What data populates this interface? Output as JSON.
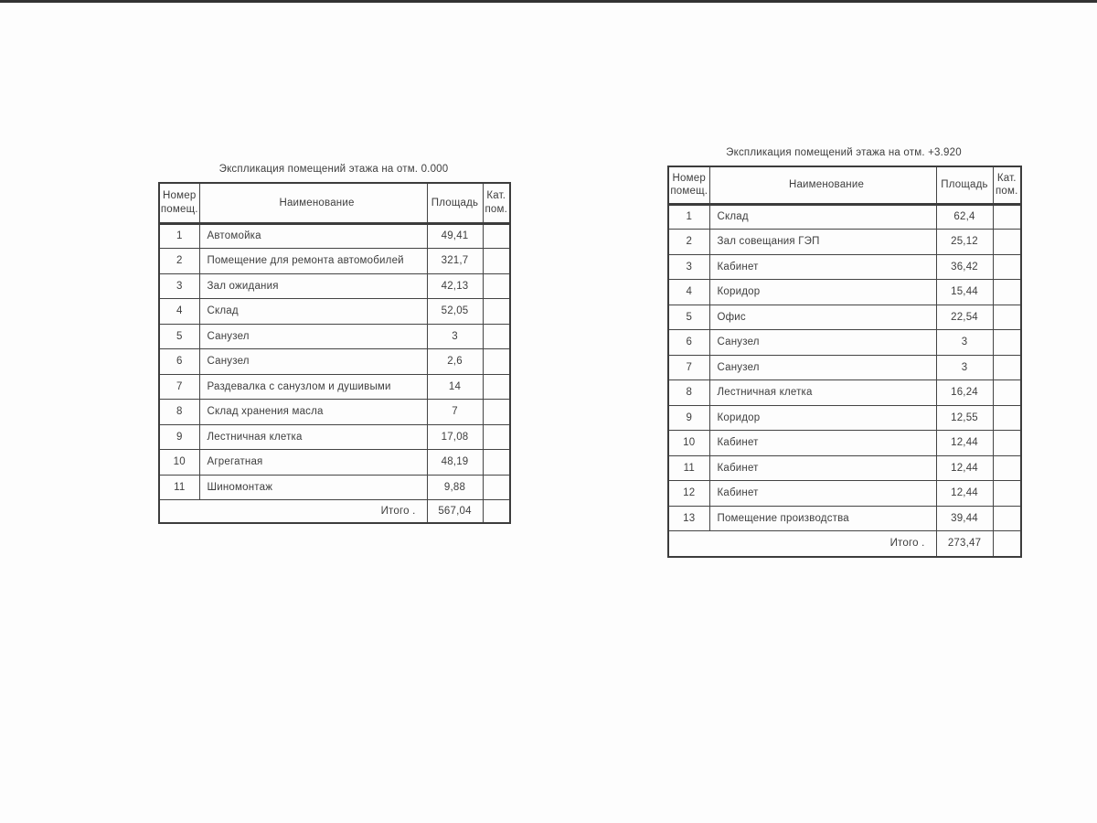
{
  "page": {
    "background": "#fdfdfd",
    "top_edge_color": "#333333",
    "border_color": "#3c3c3c",
    "text_color": "#3e3e3e"
  },
  "tables": [
    {
      "id": "floor-0.000",
      "title": "Экспликация помещений этажа на отм. 0.000",
      "header": {
        "number": [
          "Номер",
          "помещ."
        ],
        "name": "Наименование",
        "area": "Площадь",
        "category": [
          "Кат.",
          "пом."
        ]
      },
      "rows": [
        {
          "num": "1",
          "name": "Автомойка",
          "area": "49,41",
          "cat": ""
        },
        {
          "num": "2",
          "name": "Помещение для ремонта автомобилей",
          "area": "321,7",
          "cat": ""
        },
        {
          "num": "3",
          "name": "Зал ожидания",
          "area": "42,13",
          "cat": ""
        },
        {
          "num": "4",
          "name": "Склад",
          "area": "52,05",
          "cat": ""
        },
        {
          "num": "5",
          "name": "Санузел",
          "area": "3",
          "cat": ""
        },
        {
          "num": "6",
          "name": "Санузел",
          "area": "2,6",
          "cat": ""
        },
        {
          "num": "7",
          "name": "Раздевалка с санузлом и душивыми",
          "area": "14",
          "cat": ""
        },
        {
          "num": "8",
          "name": "Склад хранения масла",
          "area": "7",
          "cat": ""
        },
        {
          "num": "9",
          "name": "Лестничная клетка",
          "area": "17,08",
          "cat": ""
        },
        {
          "num": "10",
          "name": "Агрегатная",
          "area": "48,19",
          "cat": ""
        },
        {
          "num": "11",
          "name": "Шиномонтаж",
          "area": "9,88",
          "cat": ""
        }
      ],
      "total_label": "Итого .",
      "total_value": "567,04"
    },
    {
      "id": "floor-+3.920",
      "title": "Экспликация помещений этажа на отм. +3.920",
      "header": {
        "number": [
          "Номер",
          "помещ."
        ],
        "name": "Наименование",
        "area": "Площадь",
        "category": [
          "Кат.",
          "пом."
        ]
      },
      "rows": [
        {
          "num": "1",
          "name": "Склад",
          "area": "62,4",
          "cat": ""
        },
        {
          "num": "2",
          "name": "Зал совещания ГЭП",
          "area": "25,12",
          "cat": ""
        },
        {
          "num": "3",
          "name": "Кабинет",
          "area": "36,42",
          "cat": ""
        },
        {
          "num": "4",
          "name": "Коридор",
          "area": "15,44",
          "cat": ""
        },
        {
          "num": "5",
          "name": "Офис",
          "area": "22,54",
          "cat": ""
        },
        {
          "num": "6",
          "name": "Санузел",
          "area": "3",
          "cat": ""
        },
        {
          "num": "7",
          "name": "Санузел",
          "area": "3",
          "cat": ""
        },
        {
          "num": "8",
          "name": "Лестничная клетка",
          "area": "16,24",
          "cat": ""
        },
        {
          "num": "9",
          "name": "Коридор",
          "area": "12,55",
          "cat": ""
        },
        {
          "num": "10",
          "name": "Кабинет",
          "area": "12,44",
          "cat": ""
        },
        {
          "num": "11",
          "name": "Кабинет",
          "area": "12,44",
          "cat": ""
        },
        {
          "num": "12",
          "name": "Кабинет",
          "area": "12,44",
          "cat": ""
        },
        {
          "num": "13",
          "name": "Помещение производства",
          "area": "39,44",
          "cat": ""
        }
      ],
      "total_label": "Итого .",
      "total_value": "273,47"
    }
  ]
}
